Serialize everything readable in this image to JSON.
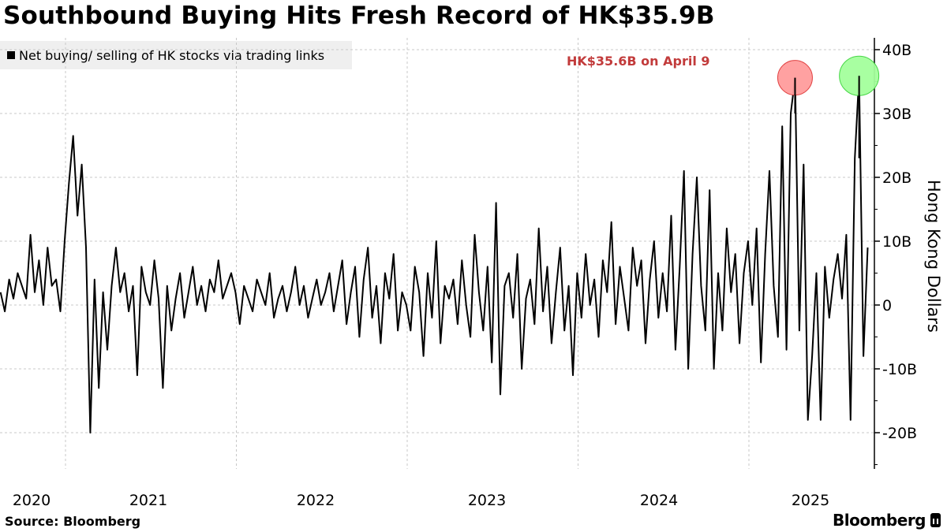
{
  "title": "Southbound Buying Hits Fresh Record of HK$35.9B",
  "legend": "Net buying/ selling of HK stocks via trading links",
  "annotation": "HK$35.6B on April 9",
  "source": "Source: Bloomberg",
  "logo": "Bloomberg",
  "colors": {
    "line": "#000000",
    "annotation": "#c23b3b",
    "red_marker": "#ff9c9c",
    "green_marker": "#a4ff9c"
  },
  "chart_data": {
    "type": "line",
    "title": "Southbound Buying Hits Fresh Record of HK$35.9B",
    "ylabel": "Hong Kong Dollars",
    "xlabel": "",
    "x_start_year": 2020.62,
    "x_step_years": 0.025,
    "xlim": [
      2020.62,
      2025.73
    ],
    "ylim": [
      -25,
      42
    ],
    "x_ticks": [
      "2020",
      "2021",
      "2022",
      "2023",
      "2024",
      "2025"
    ],
    "y_ticks": [
      40,
      30,
      20,
      10,
      0,
      -10,
      -20
    ],
    "y_tick_labels": [
      "40B",
      "30B",
      "20B",
      "10B",
      "0",
      "-10B",
      "-20B"
    ],
    "grid": true,
    "legend_position": "top-left",
    "series": [
      {
        "name": "Net buying/ selling of HK stocks via trading links",
        "unit": "HK$ billion",
        "values": [
          2,
          -1,
          4,
          1,
          5,
          3,
          1,
          11,
          2,
          7,
          0,
          9,
          3,
          4,
          -1,
          10,
          19,
          26.5,
          14,
          22,
          9,
          -20,
          4,
          -13,
          2,
          -7,
          3,
          9,
          2,
          5,
          -1,
          3,
          -11,
          6,
          2,
          0,
          7,
          1,
          -13,
          3,
          -4,
          1,
          5,
          -2,
          2,
          6,
          0,
          3,
          -1,
          4,
          2,
          7,
          1,
          3,
          5,
          2,
          -3,
          3,
          1,
          -1,
          4,
          2,
          0,
          5,
          -2,
          1,
          3,
          -1,
          2,
          6,
          0,
          3,
          -2,
          1,
          4,
          0,
          2,
          5,
          -1,
          3,
          7,
          -3,
          2,
          6,
          -5,
          4,
          9,
          -2,
          3,
          -6,
          5,
          1,
          8,
          -4,
          2,
          0,
          -4,
          6,
          2,
          -8,
          5,
          -2,
          10,
          -6,
          3,
          1,
          4,
          -3,
          7,
          0,
          -5,
          11,
          2,
          -4,
          6,
          -9,
          16,
          -14,
          3,
          5,
          -2,
          8,
          -10,
          1,
          4,
          -3,
          12,
          -1,
          6,
          -6,
          2,
          9,
          -4,
          3,
          -11,
          5,
          -2,
          8,
          0,
          4,
          -5,
          7,
          2,
          13,
          -3,
          6,
          1,
          -4,
          9,
          3,
          7,
          -6,
          4,
          10,
          -2,
          5,
          -1,
          14,
          -7,
          6,
          21,
          -10,
          8,
          20,
          3,
          -4,
          18,
          -10,
          5,
          -4,
          12,
          2,
          8,
          -6,
          5,
          10,
          0,
          12,
          -9,
          8,
          21,
          3,
          -5,
          28,
          -7,
          30,
          35.6,
          -4,
          22,
          -18,
          -8,
          5,
          -18,
          6,
          -2,
          4,
          8,
          1,
          11,
          -18,
          23,
          35.9,
          -8,
          9
        ]
      }
    ],
    "highlights": [
      {
        "label": "HK$35.6B on April 9",
        "index": 186,
        "value": 35.6,
        "color": "red"
      },
      {
        "label": "record",
        "index": 201,
        "value": 35.9,
        "color": "green"
      }
    ]
  }
}
